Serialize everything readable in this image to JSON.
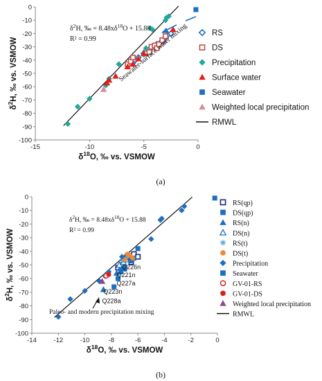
{
  "chart_data": [
    {
      "id": "a",
      "type": "scatter",
      "caption": "(a)",
      "xlabel": "δ18O, ‰ vs. VSMOW",
      "ylabel": "δ2H, ‰ vs. VSMOW",
      "xlim": [
        -15,
        0
      ],
      "ylim": [
        -100,
        0
      ],
      "xticks": [
        -15,
        -10,
        -5,
        0
      ],
      "yticks": [
        0,
        -10,
        -20,
        -30,
        -40,
        -50,
        -60,
        -70,
        -80,
        -90,
        -100
      ],
      "grid": false,
      "legend_position": "right",
      "equation": "δ2H, ‰ = 8.48xδ18O + 15.88",
      "r2": "R² = 0.99",
      "annotation": "Seawater-surface water mixing",
      "line": {
        "name": "RMWL",
        "slope": 8.48,
        "intercept": 15.88,
        "x_range": [
          -12.4,
          -1.8
        ]
      },
      "series": [
        {
          "name": "RS",
          "marker": "diamond-open",
          "color": "#1f6fbf",
          "points": [
            [
              -6.0,
              -42
            ],
            [
              -5.8,
              -40
            ],
            [
              -5.5,
              -38
            ],
            [
              -5.0,
              -35
            ],
            [
              -4.8,
              -33
            ],
            [
              -4.5,
              -32
            ],
            [
              -4.3,
              -31
            ],
            [
              -4.0,
              -30
            ],
            [
              -3.8,
              -28
            ],
            [
              -3.5,
              -27
            ],
            [
              -3.2,
              -26
            ],
            [
              -3.0,
              -23
            ],
            [
              -2.8,
              -21
            ],
            [
              -2.5,
              -20
            ]
          ]
        },
        {
          "name": "DS",
          "marker": "square-open",
          "color": "#c0504d",
          "points": [
            [
              -6.5,
              -43
            ],
            [
              -6.2,
              -41
            ],
            [
              -6.0,
              -38
            ],
            [
              -4.8,
              -35
            ],
            [
              -4.5,
              -34
            ],
            [
              -4.3,
              -30
            ],
            [
              -4.0,
              -29
            ],
            [
              -3.8,
              -31
            ],
            [
              -3.6,
              -28
            ],
            [
              -3.3,
              -25
            ],
            [
              -3.0,
              -22
            ]
          ]
        },
        {
          "name": "Precipitation",
          "marker": "diamond",
          "color": "#20a89b",
          "points": [
            [
              -12.0,
              -88
            ],
            [
              -11.1,
              -75
            ],
            [
              -10.0,
              -69
            ],
            [
              -8.5,
              -59
            ],
            [
              -8.2,
              -54
            ],
            [
              -7.3,
              -43
            ],
            [
              -5.0,
              -36
            ],
            [
              -4.8,
              -31
            ],
            [
              -4.2,
              -17
            ],
            [
              -4.4,
              -16
            ],
            [
              -3.0,
              -10
            ],
            [
              -2.9,
              -8
            ],
            [
              -2.7,
              -7
            ]
          ]
        },
        {
          "name": "Surface water",
          "marker": "triangle",
          "color": "#e0201b",
          "points": [
            [
              -8.4,
              -57
            ],
            [
              -8.2,
              -55
            ],
            [
              -7.6,
              -52
            ],
            [
              -6.5,
              -45
            ],
            [
              -6.0,
              -43
            ],
            [
              -5.5,
              -39
            ],
            [
              -5.0,
              -35
            ],
            [
              -2.3,
              -17
            ]
          ]
        },
        {
          "name": "Seawater",
          "marker": "square",
          "color": "#1f6fbf",
          "points": [
            [
              -0.2,
              -2
            ]
          ]
        },
        {
          "name": "Weighted local precipitation",
          "marker": "triangle",
          "color": "#d98c9a",
          "points": [
            [
              -8.7,
              -62
            ]
          ]
        },
        {
          "name": "RMWL",
          "marker": "line",
          "color": "#111111",
          "points": []
        }
      ]
    },
    {
      "id": "b",
      "type": "scatter",
      "caption": "(b)",
      "xlabel": "δ18O, ‰ vs. VSMOW",
      "ylabel": "δ2H, ‰ vs. VSMOW",
      "xlim": [
        -14,
        0
      ],
      "ylim": [
        -100,
        0
      ],
      "xticks": [
        -14,
        -12,
        -10,
        -8,
        -6,
        -4,
        -2,
        0
      ],
      "yticks": [
        0,
        -10,
        -20,
        -30,
        -40,
        -50,
        -60,
        -70,
        -80,
        -90,
        -100
      ],
      "grid": false,
      "legend_position": "right",
      "equation": "δ2H, ‰ = 8.48xδ18O + 15.88",
      "r2": "R² = 0.99",
      "annotation": "Paleo- and modern precipitation mixing",
      "point_labels": [
        {
          "text": "Q226n",
          "x": -7.2,
          "y": -53
        },
        {
          "text": "Q221n",
          "x": -7.6,
          "y": -59
        },
        {
          "text": "Q227a",
          "x": -7.6,
          "y": -65
        },
        {
          "text": "Q223n",
          "x": -8.6,
          "y": -71
        },
        {
          "text": "Q228a",
          "x": -8.7,
          "y": -78
        }
      ],
      "line": {
        "name": "RMWL",
        "slope": 8.48,
        "intercept": 15.88,
        "x_range": [
          -12.3,
          -1.9
        ]
      },
      "series": [
        {
          "name": "RS(qp)",
          "marker": "square-open",
          "color": "#1a2a6c",
          "points": [
            [
              -7.0,
              -45
            ],
            [
              -6.8,
              -44
            ],
            [
              -6.5,
              -47
            ],
            [
              -6.3,
              -42
            ],
            [
              -6.0,
              -44
            ],
            [
              -6.5,
              -48
            ],
            [
              -7.2,
              -50
            ],
            [
              -7.5,
              -52
            ]
          ]
        },
        {
          "name": "DS(qp)",
          "marker": "square",
          "color": "#1f6fbf",
          "points": [
            [
              -7.8,
              -66
            ],
            [
              -7.5,
              -60
            ],
            [
              -7.3,
              -55
            ],
            [
              -7.0,
              -53
            ],
            [
              -6.5,
              -47
            ],
            [
              -6.3,
              -45
            ],
            [
              -6.0,
              -38
            ],
            [
              -0.2,
              -1
            ]
          ]
        },
        {
          "name": "RS(n)",
          "marker": "triangle",
          "color": "#1f6fbf",
          "points": [
            [
              -8.6,
              -68
            ],
            [
              -7.6,
              -56
            ],
            [
              -7.3,
              -52
            ],
            [
              -7.0,
              -50
            ]
          ]
        },
        {
          "name": "DS(n)",
          "marker": "triangle-open",
          "color": "#1f6fbf",
          "points": [
            [
              -7.4,
              -50
            ],
            [
              -7.1,
              -48
            ],
            [
              -6.9,
              -46
            ]
          ]
        },
        {
          "name": "RS(t)",
          "marker": "star",
          "color": "#5aa9d6",
          "points": [
            [
              -7.2,
              -47
            ],
            [
              -6.8,
              -44
            ]
          ]
        },
        {
          "name": "DS(t)",
          "marker": "circle",
          "color": "#f0883a",
          "points": [
            [
              -6.8,
              -42
            ],
            [
              -6.6,
              -43
            ],
            [
              -6.4,
              -45
            ],
            [
              -7.0,
              -46
            ]
          ]
        },
        {
          "name": "Precipitation",
          "marker": "diamond",
          "color": "#1f6fbf",
          "points": [
            [
              -12.0,
              -88
            ],
            [
              -11.1,
              -75
            ],
            [
              -10.0,
              -69
            ],
            [
              -8.9,
              -62
            ],
            [
              -8.5,
              -58
            ],
            [
              -8.2,
              -55
            ],
            [
              -7.2,
              -44
            ],
            [
              -5.0,
              -31
            ],
            [
              -4.3,
              -17
            ],
            [
              -4.2,
              -16
            ],
            [
              -2.7,
              -10
            ],
            [
              -2.5,
              -7
            ]
          ]
        },
        {
          "name": "Seawater",
          "marker": "square",
          "color": "#1f6fbf",
          "points": []
        },
        {
          "name": "GV-01-RS",
          "marker": "circle-open",
          "color": "#d62020",
          "points": [
            [
              -8.4,
              -58
            ]
          ]
        },
        {
          "name": "GV-01-DS",
          "marker": "circle",
          "color": "#d62020",
          "points": [
            [
              -8.2,
              -57
            ]
          ]
        },
        {
          "name": "Weighted local precipitation",
          "marker": "triangle",
          "color": "#8a4a8a",
          "points": [
            [
              -8.7,
              -62
            ]
          ]
        },
        {
          "name": "RMWL",
          "marker": "line",
          "color": "#111111",
          "points": []
        }
      ]
    }
  ]
}
